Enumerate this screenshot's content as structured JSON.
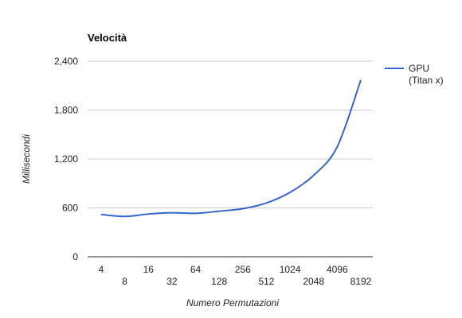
{
  "chart_data": {
    "type": "line",
    "title": "Velocità",
    "xlabel": "Numero Permutazioni",
    "ylabel": "Millisecondi",
    "categories": [
      "4",
      "8",
      "16",
      "32",
      "64",
      "128",
      "256",
      "512",
      "1024",
      "2048",
      "4096",
      "8192"
    ],
    "series": [
      {
        "name_lines": [
          "GPU",
          "(Titan x)"
        ],
        "color": "#3366cc",
        "values": [
          520,
          495,
          525,
          540,
          533,
          560,
          590,
          660,
          790,
          1000,
          1350,
          2170
        ]
      }
    ],
    "ylim": [
      0,
      2400
    ],
    "yticks": [
      0,
      600,
      1200,
      1800,
      2400
    ],
    "ytick_labels": [
      "0",
      "600",
      "1,200",
      "1,800",
      "2,400"
    ],
    "grid": true,
    "legend_position": "right"
  }
}
